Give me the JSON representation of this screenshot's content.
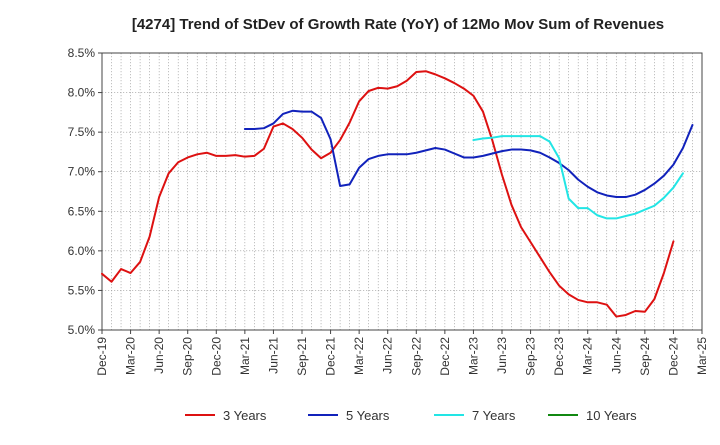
{
  "chart_data": {
    "type": "line",
    "title": "[4274]  Trend of StDev of Growth Rate (YoY) of 12Mo Mov Sum of Revenues",
    "xlabel": "",
    "ylabel": "",
    "ylim": [
      5.0,
      8.5
    ],
    "y_ticks": [
      "5.0%",
      "5.5%",
      "6.0%",
      "6.5%",
      "7.0%",
      "7.5%",
      "8.0%",
      "8.5%"
    ],
    "y_tick_values": [
      5.0,
      5.5,
      6.0,
      6.5,
      7.0,
      7.5,
      8.0,
      8.5
    ],
    "x_ticks": [
      "Dec-19",
      "Mar-20",
      "Jun-20",
      "Sep-20",
      "Dec-20",
      "Mar-21",
      "Jun-21",
      "Sep-21",
      "Dec-21",
      "Mar-22",
      "Jun-22",
      "Sep-22",
      "Dec-22",
      "Mar-23",
      "Jun-23",
      "Sep-23",
      "Dec-23",
      "Mar-24",
      "Jun-24",
      "Sep-24",
      "Dec-24",
      "Mar-25"
    ],
    "x_start": "Dec-19",
    "x_count_months": 63,
    "grid": true,
    "legend_position": "bottom",
    "series": [
      {
        "name": "3 Years",
        "color": "#dd1111",
        "start_index": 0,
        "values": [
          5.71,
          5.61,
          5.77,
          5.72,
          5.86,
          6.18,
          6.68,
          6.98,
          7.12,
          7.18,
          7.22,
          7.24,
          7.2,
          7.2,
          7.21,
          7.19,
          7.2,
          7.29,
          7.57,
          7.61,
          7.54,
          7.43,
          7.28,
          7.17,
          7.24,
          7.4,
          7.62,
          7.89,
          8.02,
          8.06,
          8.05,
          8.08,
          8.15,
          8.26,
          8.27,
          8.23,
          8.18,
          8.12,
          8.05,
          7.96,
          7.76,
          7.39,
          6.96,
          6.58,
          6.3,
          6.11,
          5.92,
          5.73,
          5.56,
          5.45,
          5.38,
          5.35,
          5.35,
          5.32,
          5.17,
          5.19,
          5.24,
          5.23,
          5.39,
          5.72,
          6.12
        ]
      },
      {
        "name": "5 Years",
        "color": "#1122bb",
        "start_index": 15,
        "values": [
          7.54,
          7.54,
          7.55,
          7.61,
          7.73,
          7.77,
          7.76,
          7.76,
          7.68,
          7.41,
          6.82,
          6.84,
          7.05,
          7.16,
          7.2,
          7.22,
          7.22,
          7.22,
          7.24,
          7.27,
          7.3,
          7.28,
          7.23,
          7.18,
          7.18,
          7.2,
          7.23,
          7.26,
          7.28,
          7.28,
          7.27,
          7.24,
          7.18,
          7.11,
          7.02,
          6.9,
          6.81,
          6.74,
          6.7,
          6.68,
          6.68,
          6.71,
          6.77,
          6.85,
          6.95,
          7.09,
          7.3,
          7.59
        ]
      },
      {
        "name": "7 Years",
        "color": "#22e5e5",
        "start_index": 39,
        "values": [
          7.4,
          7.42,
          7.43,
          7.45,
          7.45,
          7.45,
          7.45,
          7.45,
          7.38,
          7.17,
          6.66,
          6.54,
          6.54,
          6.45,
          6.41,
          6.41,
          6.44,
          6.47,
          6.52,
          6.57,
          6.67,
          6.8,
          6.98
        ]
      },
      {
        "name": "10 Years",
        "color": "#118811",
        "start_index": 0,
        "values": []
      }
    ]
  }
}
